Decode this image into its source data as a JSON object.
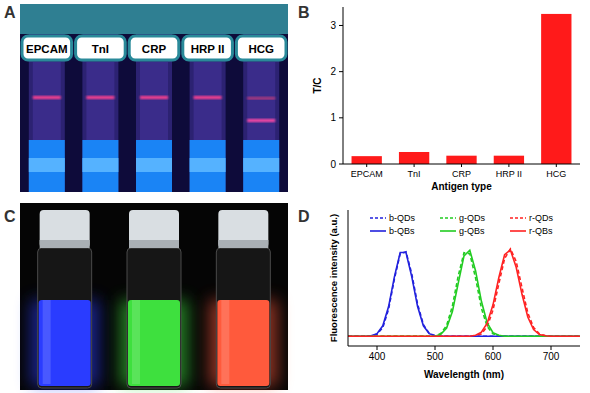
{
  "panel_labels": [
    "A",
    "B",
    "C",
    "D"
  ],
  "strip_labels": [
    "EPCAM",
    "TnI",
    "CRP",
    "HRP II",
    "HCG"
  ],
  "vials": {
    "colors": [
      "#2a3cff",
      "#3ee03e",
      "#ff5a3c"
    ]
  },
  "chart_data": [
    {
      "type": "bar",
      "categories": [
        "EPCAM",
        "TnI",
        "CRP",
        "HRP II",
        "HCG"
      ],
      "values": [
        0.17,
        0.26,
        0.18,
        0.18,
        3.25
      ],
      "color": "#ff1a1a",
      "ylim": [
        0,
        3.4
      ],
      "yticks": [
        0,
        1,
        2,
        3
      ],
      "x_label": "Antigen type",
      "y_label": "T/C",
      "grid": false
    },
    {
      "type": "line",
      "x": [
        350,
        360,
        370,
        380,
        390,
        400,
        410,
        420,
        430,
        440,
        450,
        460,
        470,
        480,
        490,
        500,
        510,
        520,
        530,
        540,
        550,
        560,
        570,
        580,
        590,
        600,
        610,
        620,
        630,
        640,
        650,
        660,
        670,
        680,
        690,
        700,
        710,
        720,
        730,
        740,
        750
      ],
      "series": [
        {
          "name": "b-QDs",
          "color": "#2222dd",
          "line_style": "dashed",
          "values": [
            0.1,
            0.1,
            0.1,
            0.1,
            0.105,
            0.12,
            0.19,
            0.38,
            0.69,
            0.95,
            0.97,
            0.74,
            0.43,
            0.22,
            0.13,
            0.105,
            0.1,
            0.1,
            0.1,
            0.1,
            0.1,
            0.1,
            0.1,
            0.1,
            0.1,
            0.1,
            0.1,
            0.1,
            0.1,
            0.1,
            0.1,
            0.1,
            0.1,
            0.1,
            0.1,
            0.1,
            0.1,
            0.1,
            0.1,
            0.1,
            0.1
          ]
        },
        {
          "name": "g-QDs",
          "color": "#22cc22",
          "line_style": "dashed",
          "values": [
            0.1,
            0.1,
            0.1,
            0.1,
            0.1,
            0.1,
            0.1,
            0.1,
            0.1,
            0.1,
            0.1,
            0.1,
            0.1,
            0.1,
            0.1,
            0.1,
            0.13,
            0.21,
            0.41,
            0.72,
            0.96,
            0.95,
            0.7,
            0.39,
            0.2,
            0.125,
            0.105,
            0.1,
            0.1,
            0.1,
            0.1,
            0.1,
            0.1,
            0.1,
            0.1,
            0.1,
            0.1,
            0.1,
            0.1,
            0.1,
            0.1
          ]
        },
        {
          "name": "r-QDs",
          "color": "#ff2222",
          "line_style": "dashed",
          "values": [
            0.1,
            0.1,
            0.1,
            0.1,
            0.1,
            0.1,
            0.1,
            0.1,
            0.1,
            0.1,
            0.1,
            0.1,
            0.1,
            0.1,
            0.1,
            0.1,
            0.1,
            0.1,
            0.1,
            0.1,
            0.1,
            0.1,
            0.105,
            0.125,
            0.2,
            0.37,
            0.64,
            0.9,
            1.0,
            0.87,
            0.6,
            0.34,
            0.19,
            0.125,
            0.107,
            0.1,
            0.1,
            0.1,
            0.1,
            0.1,
            0.1
          ]
        },
        {
          "name": "b-QBs",
          "color": "#2222dd",
          "line_style": "solid",
          "values": [
            0.1,
            0.1,
            0.1,
            0.1,
            0.105,
            0.127,
            0.208,
            0.406,
            0.712,
            0.962,
            0.962,
            0.712,
            0.406,
            0.208,
            0.127,
            0.105,
            0.1,
            0.1,
            0.1,
            0.1,
            0.1,
            0.1,
            0.1,
            0.1,
            0.1,
            0.1,
            0.1,
            0.1,
            0.1,
            0.1,
            0.1,
            0.1,
            0.1,
            0.1,
            0.1,
            0.1,
            0.1,
            0.1,
            0.1,
            0.1,
            0.1
          ]
        },
        {
          "name": "g-QBs",
          "color": "#22cc22",
          "line_style": "solid",
          "values": [
            0.1,
            0.1,
            0.1,
            0.1,
            0.1,
            0.1,
            0.1,
            0.1,
            0.1,
            0.1,
            0.1,
            0.1,
            0.1,
            0.1,
            0.1,
            0.1,
            0.12,
            0.185,
            0.354,
            0.645,
            0.928,
            0.986,
            0.773,
            0.46,
            0.238,
            0.137,
            0.11,
            0.1,
            0.1,
            0.1,
            0.1,
            0.1,
            0.1,
            0.1,
            0.1,
            0.1,
            0.1,
            0.1,
            0.1,
            0.1,
            0.1
          ]
        },
        {
          "name": "r-QBs",
          "color": "#ff2222",
          "line_style": "solid",
          "values": [
            0.1,
            0.1,
            0.1,
            0.1,
            0.1,
            0.1,
            0.1,
            0.1,
            0.1,
            0.1,
            0.1,
            0.1,
            0.1,
            0.1,
            0.1,
            0.1,
            0.1,
            0.1,
            0.1,
            0.1,
            0.1,
            0.1,
            0.11,
            0.142,
            0.235,
            0.424,
            0.703,
            0.94,
            0.989,
            0.811,
            0.532,
            0.298,
            0.169,
            0.118,
            0.105,
            0.1,
            0.1,
            0.1,
            0.1,
            0.1,
            0.1
          ]
        }
      ],
      "xlim": [
        350,
        750
      ],
      "xticks": [
        400,
        500,
        600,
        700
      ],
      "ylim": [
        0,
        1.4
      ],
      "yticks": [],
      "tick_labels": "x",
      "x_label": "Wavelength (nm)",
      "y_label": "Fluorescence intensity (a.u.)",
      "legend": "top",
      "grid": false
    }
  ]
}
